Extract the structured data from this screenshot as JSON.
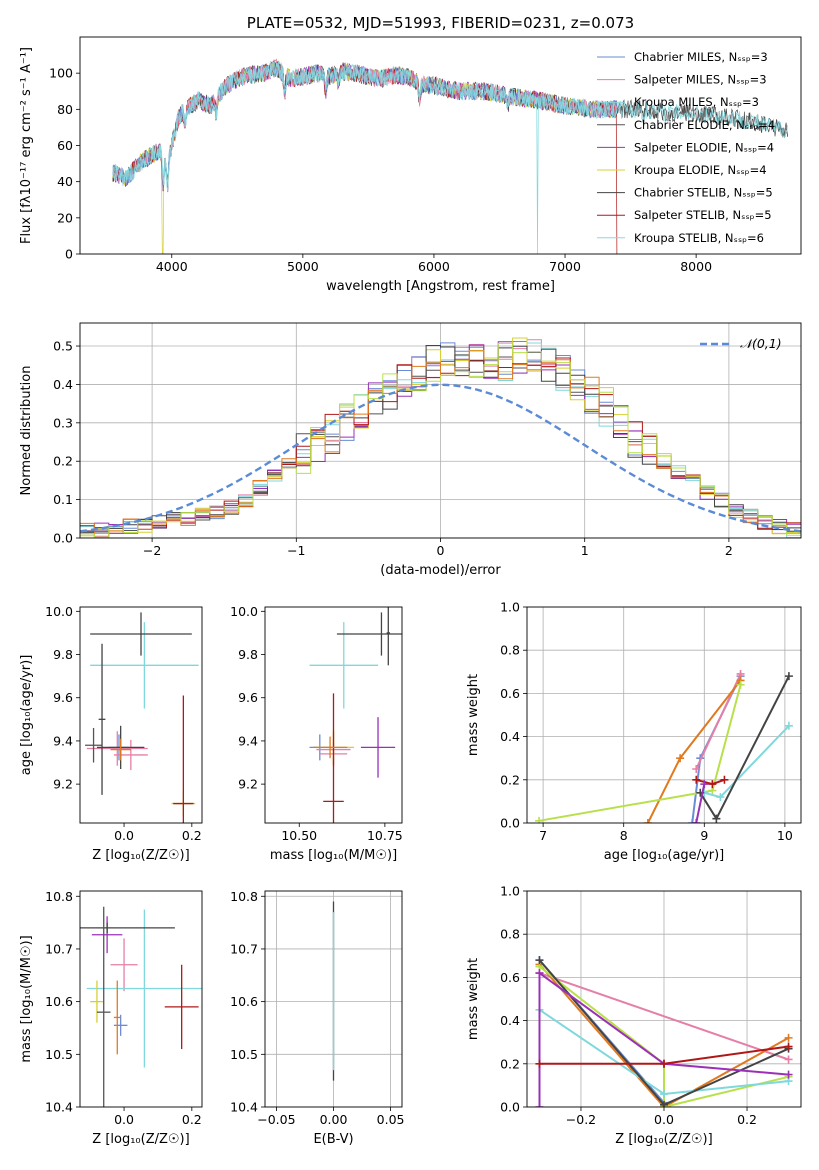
{
  "colors": {
    "series": [
      "#6b8bd6",
      "#e57fa6",
      "#7fd8dc",
      "#555555",
      "#9b30b8",
      "#d6d033",
      "#444444",
      "#b01818",
      "#88d8e0"
    ],
    "orange": "#e07a20",
    "lime": "#b8e04a",
    "gaussian": "#5b8bd6",
    "grid": "#b0b0b0"
  },
  "chart_data": [
    {
      "id": "spectrum",
      "type": "line",
      "title": "PLATE=0532, MJD=51993, FIBERID=0231, z=0.073",
      "xlabel": "wavelength [Angstrom, rest frame]",
      "ylabel": "Flux [fλ10⁻¹⁷ erg cm⁻² s⁻¹ A⁻¹]",
      "xlim": [
        3300,
        8800
      ],
      "ylim": [
        0,
        120
      ],
      "xticks": [
        4000,
        5000,
        6000,
        7000,
        8000
      ],
      "yticks": [
        0,
        20,
        40,
        60,
        80,
        100
      ],
      "grid": false,
      "legend_position": "upper-right",
      "legend": [
        "Chabrier MILES, Nₛₛₚ=3",
        "Salpeter MILES, Nₛₛₚ=3",
        "Kroupa MILES, Nₛₛₚ=3",
        "Chabrier ELODIE, Nₛₛₚ=4",
        "Salpeter ELODIE, Nₛₛₚ=4",
        "Kroupa ELODIE, Nₛₛₚ=4",
        "Chabrier STELIB, Nₛₛₚ=5",
        "Salpeter STELIB, Nₛₛₚ=5",
        "Kroupa STELIB, Nₛₛₚ=6"
      ],
      "continuum": [
        [
          3550,
          45
        ],
        [
          3650,
          42
        ],
        [
          3750,
          50
        ],
        [
          3850,
          55
        ],
        [
          3930,
          58
        ],
        [
          3960,
          50
        ],
        [
          4000,
          60
        ],
        [
          4050,
          75
        ],
        [
          4100,
          80
        ],
        [
          4200,
          85
        ],
        [
          4300,
          82
        ],
        [
          4400,
          92
        ],
        [
          4500,
          97
        ],
        [
          4600,
          99
        ],
        [
          4700,
          100
        ],
        [
          4800,
          103
        ],
        [
          4900,
          97
        ],
        [
          5000,
          98
        ],
        [
          5100,
          100
        ],
        [
          5200,
          98
        ],
        [
          5300,
          101
        ],
        [
          5400,
          100
        ],
        [
          5500,
          98
        ],
        [
          5600,
          97
        ],
        [
          5700,
          99
        ],
        [
          5800,
          98
        ],
        [
          5900,
          94
        ],
        [
          6000,
          93
        ],
        [
          6200,
          90
        ],
        [
          6400,
          90
        ],
        [
          6600,
          87
        ],
        [
          6800,
          85
        ],
        [
          7000,
          82
        ],
        [
          7200,
          80
        ],
        [
          7400,
          80
        ],
        [
          7600,
          80
        ],
        [
          7800,
          78
        ],
        [
          8000,
          78
        ],
        [
          8200,
          76
        ],
        [
          8400,
          74
        ],
        [
          8600,
          70
        ],
        [
          8800,
          68
        ]
      ],
      "notes": "Spectrum traced as continuum with per-series noise; absorption dips at ~3920, 4860, 5180, 5890 Å; dropouts at ~3930, 6790, 7400 Å."
    },
    {
      "id": "residuals",
      "type": "step",
      "xlabel": "(data-model)/error",
      "ylabel": "Normed distribution",
      "xlim": [
        -2.5,
        2.5
      ],
      "ylim": [
        0,
        0.56
      ],
      "xticks": [
        -2,
        -1,
        0,
        1,
        2
      ],
      "yticks": [
        0.0,
        0.1,
        0.2,
        0.3,
        0.4,
        0.5
      ],
      "grid": true,
      "legend_position": "upper-right",
      "legend": [
        "𝒩(0,1)"
      ],
      "bin_width": 0.1,
      "histogram_base": [
        0.02,
        0.02,
        0.03,
        0.03,
        0.03,
        0.04,
        0.05,
        0.05,
        0.06,
        0.07,
        0.08,
        0.1,
        0.13,
        0.16,
        0.19,
        0.22,
        0.24,
        0.27,
        0.3,
        0.33,
        0.36,
        0.38,
        0.4,
        0.43,
        0.45,
        0.46,
        0.47,
        0.47,
        0.46,
        0.46,
        0.47,
        0.47,
        0.45,
        0.43,
        0.4,
        0.37,
        0.34,
        0.3,
        0.26,
        0.23,
        0.2,
        0.17,
        0.15,
        0.12,
        0.1,
        0.07,
        0.06,
        0.04,
        0.03,
        0.02
      ]
    },
    {
      "id": "age_vs_Z",
      "type": "errorbar",
      "xlabel": "Z [log₁₀(Z/Z☉)]",
      "ylabel": "age  [log₁₀(age/yr)]",
      "xlim": [
        -0.13,
        0.23
      ],
      "ylim": [
        9.02,
        10.02
      ],
      "xticks": [
        0.0,
        0.2
      ],
      "xticklabels": [
        "0.0",
        "0.2"
      ],
      "yticks": [
        9.2,
        9.4,
        9.6,
        9.8,
        10.0
      ],
      "points": [
        {
          "x": -0.015,
          "y": 9.37,
          "xerr": 0.03,
          "yerr": 0.06,
          "c": 0
        },
        {
          "x": -0.02,
          "y": 9.365,
          "xerr": 0.09,
          "yerr": 0.08,
          "c": 1
        },
        {
          "x": 0.02,
          "y": 9.335,
          "xerr": 0.05,
          "yerr": 0.07,
          "c": 1
        },
        {
          "x": 0.06,
          "y": 9.75,
          "xerr": 0.16,
          "yerr": 0.2,
          "c": 2
        },
        {
          "x": -0.09,
          "y": 9.38,
          "xerr": 0.025,
          "yerr": 0.08,
          "c": 3
        },
        {
          "x": 0.175,
          "y": 9.11,
          "xerr": 0.035,
          "yerr": 0.06,
          "c": 5
        },
        {
          "x": -0.01,
          "y": 9.37,
          "xerr": 0.07,
          "yerr": 0.1,
          "c": 6
        },
        {
          "x": -0.01,
          "y": 9.36,
          "xerr": 0.03,
          "yerr": 0.05,
          "c": "orange"
        },
        {
          "x": 0.05,
          "y": 9.895,
          "xerr": 0.15,
          "yerr": 0.1,
          "c": 6
        },
        {
          "x": -0.065,
          "y": 9.5,
          "xerr": 0.01,
          "yerr": 0.35,
          "c": 6
        },
        {
          "x": 0.175,
          "y": 9.11,
          "xerr": 0.03,
          "yerr": 0.5,
          "c": 7
        }
      ]
    },
    {
      "id": "age_vs_mass",
      "type": "errorbar",
      "xlabel": "mass [log₁₀(M/M☉)]",
      "ylabel": "",
      "xlim": [
        10.4,
        10.8
      ],
      "ylim": [
        9.02,
        10.02
      ],
      "xticks": [
        10.5,
        10.75
      ],
      "xticklabels": [
        "10.50",
        "10.75"
      ],
      "yticks": [
        9.2,
        9.4,
        9.6,
        9.8,
        10.0
      ],
      "points": [
        {
          "x": 10.56,
          "y": 9.37,
          "xerr": 0.03,
          "yerr": 0.06,
          "c": 0
        },
        {
          "x": 10.6,
          "y": 9.36,
          "xerr": 0.05,
          "yerr": 0.08,
          "c": 1
        },
        {
          "x": 10.6,
          "y": 9.34,
          "xerr": 0.04,
          "yerr": 0.05,
          "c": 1
        },
        {
          "x": 10.63,
          "y": 9.75,
          "xerr": 0.1,
          "yerr": 0.2,
          "c": 2
        },
        {
          "x": 10.73,
          "y": 9.37,
          "xerr": 0.05,
          "yerr": 0.14,
          "c": 4
        },
        {
          "x": 10.6,
          "y": 9.37,
          "xerr": 0.06,
          "yerr": 0.08,
          "c": 5
        },
        {
          "x": 10.6,
          "y": 9.12,
          "xerr": 0.03,
          "yerr": 0.5,
          "c": 7
        },
        {
          "x": 10.59,
          "y": 9.37,
          "xerr": 0.05,
          "yerr": 0.05,
          "c": "orange"
        },
        {
          "x": 10.74,
          "y": 9.895,
          "xerr": 0.13,
          "yerr": 0.1,
          "c": 6
        },
        {
          "x": 10.76,
          "y": 9.9,
          "xerr": 0.005,
          "yerr": 0.15,
          "c": 6
        }
      ]
    },
    {
      "id": "mass_weight_vs_age",
      "type": "line",
      "xlabel": "age  [log₁₀(age/yr)]",
      "ylabel": "mass weight",
      "xlim": [
        6.8,
        10.2
      ],
      "ylim": [
        0.0,
        1.0
      ],
      "xticks": [
        7,
        8,
        9,
        10
      ],
      "yticks": [
        0.0,
        0.2,
        0.4,
        0.6,
        0.8,
        1.0
      ],
      "grid": true,
      "lines": [
        {
          "c": 0,
          "x": [
            8.85,
            8.95,
            9.45
          ],
          "y": [
            0.0,
            0.3,
            0.68
          ]
        },
        {
          "c": 1,
          "x": [
            8.9,
            9.45
          ],
          "y": [
            0.25,
            0.69
          ]
        },
        {
          "c": "orange",
          "x": [
            8.3,
            8.7,
            9.45
          ],
          "y": [
            0.0,
            0.3,
            0.66
          ]
        },
        {
          "c": "lime",
          "x": [
            6.95,
            9.1,
            9.45
          ],
          "y": [
            0.01,
            0.15,
            0.64
          ]
        },
        {
          "c": 2,
          "x": [
            9.0,
            9.2,
            10.05
          ],
          "y": [
            0.14,
            0.12,
            0.45
          ]
        },
        {
          "c": 6,
          "x": [
            8.95,
            9.15,
            10.05
          ],
          "y": [
            0.14,
            0.02,
            0.68
          ]
        },
        {
          "c": 7,
          "x": [
            8.9,
            9.1,
            9.25
          ],
          "y": [
            0.2,
            0.18,
            0.2
          ]
        },
        {
          "c": 4,
          "x": [
            8.9,
            9.0
          ],
          "y": [
            0.0,
            0.18
          ]
        }
      ]
    },
    {
      "id": "mass_vs_Z",
      "type": "errorbar",
      "xlabel": "Z [log₁₀(Z/Z☉)]",
      "ylabel": "mass [log₁₀(M/M☉)]",
      "xlim": [
        -0.13,
        0.23
      ],
      "ylim": [
        10.4,
        10.81
      ],
      "xticks": [
        0.0,
        0.2
      ],
      "xticklabels": [
        "0.0",
        "0.2"
      ],
      "yticks": [
        10.4,
        10.5,
        10.6,
        10.7,
        10.8
      ],
      "points": [
        {
          "x": -0.01,
          "y": 10.555,
          "xerr": 0.02,
          "yerr": 0.02,
          "c": 0
        },
        {
          "x": -0.05,
          "y": 10.727,
          "xerr": 0.045,
          "yerr": 0.035,
          "c": 4
        },
        {
          "x": 0.0,
          "y": 10.67,
          "xerr": 0.04,
          "yerr": 0.05,
          "c": 1
        },
        {
          "x": 0.06,
          "y": 10.625,
          "xerr": 0.17,
          "yerr": 0.15,
          "c": 2
        },
        {
          "x": -0.08,
          "y": 10.6,
          "xerr": 0.02,
          "yerr": 0.04,
          "c": 5
        },
        {
          "x": 0.17,
          "y": 10.59,
          "xerr": 0.05,
          "yerr": 0.08,
          "c": 7
        },
        {
          "x": -0.02,
          "y": 10.57,
          "xerr": 0.01,
          "yerr": 0.07,
          "c": "orange"
        },
        {
          "x": -0.05,
          "y": 10.74,
          "xerr": 0.2,
          "yerr": 0.01,
          "c": 6
        },
        {
          "x": -0.06,
          "y": 10.58,
          "xerr": 0.02,
          "yerr": 0.2,
          "c": 3
        }
      ]
    },
    {
      "id": "mass_vs_EBV",
      "type": "errorbar",
      "xlabel": "E(B-V)",
      "ylabel": "",
      "xlim": [
        -0.06,
        0.06
      ],
      "ylim": [
        10.4,
        10.81
      ],
      "xticks": [
        -0.05,
        0.0,
        0.05
      ],
      "xticklabels": [
        "−0.05",
        "0.00",
        "0.05"
      ],
      "yticks": [
        10.4,
        10.5,
        10.6,
        10.7,
        10.8
      ],
      "grid": true,
      "points": [
        {
          "x": 0.0,
          "y": 10.62,
          "xerr": 0.0,
          "yerr": 0.17,
          "c": 6
        },
        {
          "x": 0.0,
          "y": 10.62,
          "xerr": 0.0,
          "yerr": 0.15,
          "c": 2
        }
      ]
    },
    {
      "id": "mass_weight_vs_Z",
      "type": "line",
      "xlabel": "Z [log₁₀(Z/Z☉)]",
      "ylabel": "mass weight",
      "xlim": [
        -0.33,
        0.33
      ],
      "ylim": [
        0.0,
        1.0
      ],
      "xticks": [
        -0.2,
        0.0,
        0.2
      ],
      "xticklabels": [
        "−0.2",
        "0.0",
        "0.2"
      ],
      "yticks": [
        0.0,
        0.2,
        0.4,
        0.6,
        0.8,
        1.0
      ],
      "grid": true,
      "lines": [
        {
          "c": 1,
          "x": [
            -0.3,
            0.3
          ],
          "y": [
            0.62,
            0.22
          ]
        },
        {
          "c": 0,
          "x": [
            -0.3,
            0.0
          ],
          "y": [
            0.68,
            0.02
          ]
        },
        {
          "c": "orange",
          "x": [
            -0.3,
            0.0,
            0.3
          ],
          "y": [
            0.66,
            0.0,
            0.32
          ]
        },
        {
          "c": "lime",
          "x": [
            -0.3,
            0.0,
            0.0,
            0.3
          ],
          "y": [
            0.65,
            0.2,
            0.0,
            0.14
          ]
        },
        {
          "c": 2,
          "x": [
            -0.3,
            0.0,
            0.3
          ],
          "y": [
            0.45,
            0.06,
            0.12
          ]
        },
        {
          "c": 6,
          "x": [
            -0.3,
            0.0,
            0.3
          ],
          "y": [
            0.68,
            0.01,
            0.27
          ]
        },
        {
          "c": 4,
          "x": [
            -0.3,
            -0.3,
            0.0,
            0.3
          ],
          "y": [
            0.0,
            0.62,
            0.2,
            0.15
          ]
        },
        {
          "c": 7,
          "x": [
            -0.3,
            0.0,
            0.3
          ],
          "y": [
            0.2,
            0.2,
            0.28
          ]
        }
      ]
    }
  ]
}
